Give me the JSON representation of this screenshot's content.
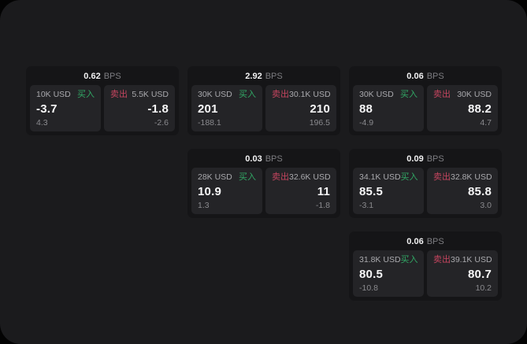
{
  "labels": {
    "bps_unit": "BPS",
    "buy": "买入",
    "sell": "卖出"
  },
  "colors": {
    "buy": "#31a865",
    "sell": "#c5455f",
    "panel_bg": "#1b1b1d",
    "card_bg": "#151517",
    "tile_bg": "#242427"
  },
  "cards": [
    {
      "row": 1,
      "col": 1,
      "bps": "0.62",
      "buy": {
        "amount": "10K USD",
        "price": "-3.7",
        "delta": "4.3"
      },
      "sell": {
        "amount": "5.5K USD",
        "price": "-1.8",
        "delta": "-2.6"
      }
    },
    {
      "row": 1,
      "col": 2,
      "bps": "2.92",
      "buy": {
        "amount": "30K USD",
        "price": "201",
        "delta": "-188.1"
      },
      "sell": {
        "amount": "30.1K USD",
        "price": "210",
        "delta": "196.5"
      }
    },
    {
      "row": 1,
      "col": 3,
      "bps": "0.06",
      "buy": {
        "amount": "30K USD",
        "price": "88",
        "delta": "-4.9"
      },
      "sell": {
        "amount": "30K USD",
        "price": "88.2",
        "delta": "4.7"
      }
    },
    {
      "row": 2,
      "col": 2,
      "bps": "0.03",
      "buy": {
        "amount": "28K USD",
        "price": "10.9",
        "delta": "1.3"
      },
      "sell": {
        "amount": "32.6K USD",
        "price": "11",
        "delta": "-1.8"
      }
    },
    {
      "row": 2,
      "col": 3,
      "bps": "0.09",
      "buy": {
        "amount": "34.1K USD",
        "price": "85.5",
        "delta": "-3.1"
      },
      "sell": {
        "amount": "32.8K USD",
        "price": "85.8",
        "delta": "3.0"
      }
    },
    {
      "row": 3,
      "col": 3,
      "bps": "0.06",
      "buy": {
        "amount": "31.8K USD",
        "price": "80.5",
        "delta": "-10.8"
      },
      "sell": {
        "amount": "39.1K USD",
        "price": "80.7",
        "delta": "10.2"
      }
    }
  ]
}
